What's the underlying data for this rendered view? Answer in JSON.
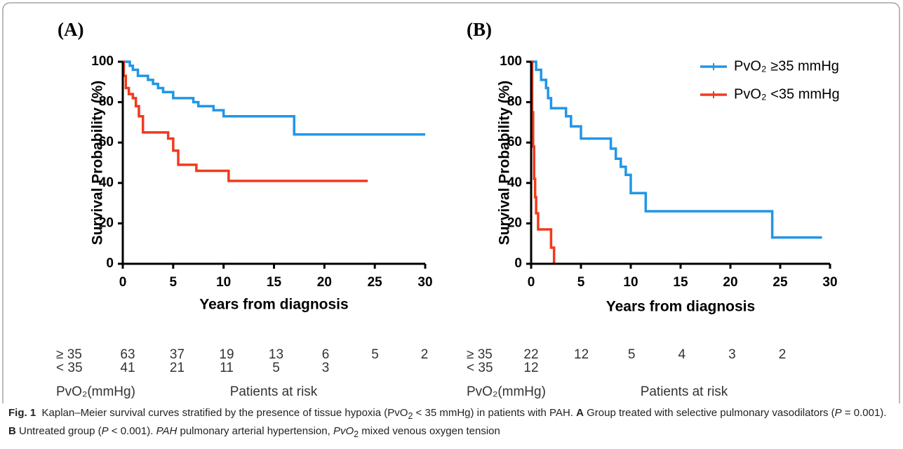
{
  "chart_data": [
    {
      "type": "step",
      "title": "(A)",
      "x_label": "Years from diagnosis",
      "y_label": "Survival Probability (%)",
      "xlim": [
        0,
        30
      ],
      "ylim": [
        0,
        100
      ],
      "xticks": [
        0,
        5,
        10,
        15,
        20,
        25,
        30
      ],
      "yticks": [
        0,
        20,
        40,
        60,
        80,
        100
      ],
      "series": [
        {
          "color": "#2196e8",
          "x": [
            0,
            0.7,
            1,
            1.5,
            2.5,
            3,
            3.5,
            4,
            5,
            7,
            7.5,
            9,
            10,
            17,
            30
          ],
          "values": [
            100,
            98,
            96,
            93,
            91,
            89,
            87,
            85,
            82,
            80,
            78,
            76,
            73,
            64,
            64
          ]
        },
        {
          "color": "#f03a1e",
          "x": [
            0,
            0.1,
            0.3,
            0.6,
            1,
            1.3,
            1.6,
            2,
            4.5,
            5,
            5.5,
            7.3,
            10.5,
            24.3
          ],
          "values": [
            100,
            93,
            87,
            84,
            82,
            78,
            73,
            65,
            62,
            56,
            49,
            46,
            41,
            41
          ]
        }
      ]
    },
    {
      "type": "step",
      "title": "(B)",
      "x_label": "Years from diagnosis",
      "y_label": "Survival Probability (%)",
      "xlim": [
        0,
        30
      ],
      "ylim": [
        0,
        100
      ],
      "xticks": [
        0,
        5,
        10,
        15,
        20,
        25,
        30
      ],
      "yticks": [
        0,
        20,
        40,
        60,
        80,
        100
      ],
      "legend": "upper right",
      "series": [
        {
          "name": "PvO₂ ≥35 mmHg",
          "color": "#2196e8",
          "x": [
            0,
            0.5,
            1,
            1.5,
            1.7,
            2,
            3.5,
            4,
            5,
            8,
            8.5,
            9,
            9.5,
            10,
            11.5,
            24.2,
            29.2
          ],
          "values": [
            100,
            96,
            91,
            87,
            82,
            77,
            73,
            68,
            62,
            57,
            52,
            48,
            44,
            35,
            26,
            13,
            13
          ]
        },
        {
          "name": "PvO₂ <35 mmHg",
          "color": "#f03a1e",
          "x": [
            0,
            0.1,
            0.2,
            0.3,
            0.4,
            0.5,
            0.7,
            2,
            2.3
          ],
          "values": [
            100,
            75,
            58,
            42,
            33,
            25,
            17,
            8,
            0
          ]
        }
      ]
    }
  ],
  "risk_tables": [
    {
      "group_header": "PvO₂(mmHg)",
      "caption": "Patients at risk",
      "rows": [
        {
          "label": "≥ 35",
          "values": [
            63,
            37,
            19,
            13,
            6,
            5,
            2
          ]
        },
        {
          "label": "< 35",
          "values": [
            41,
            21,
            11,
            5,
            3
          ]
        }
      ]
    },
    {
      "group_header": "PvO₂(mmHg)",
      "caption": "Patients at risk",
      "rows": [
        {
          "label": "≥ 35",
          "values": [
            22,
            12,
            5,
            4,
            3,
            2
          ]
        },
        {
          "label": "< 35",
          "values": [
            12
          ]
        }
      ]
    }
  ],
  "caption": [
    "Fig. 1",
    "Kaplan–Meier survival curves stratified by the presence of tissue hypoxia (PvO",
    "2",
    " < 35 mmHg) in patients with PAH. ",
    "A",
    " Group treated with selective pulmonary vasodilators (",
    "P",
    " = 0.001). ",
    "B",
    " Untreated group (",
    "P",
    " < 0.001). ",
    "PAH",
    " pulmonary arterial hypertension, ",
    "PvO",
    "2",
    " mixed venous oxygen tension"
  ]
}
